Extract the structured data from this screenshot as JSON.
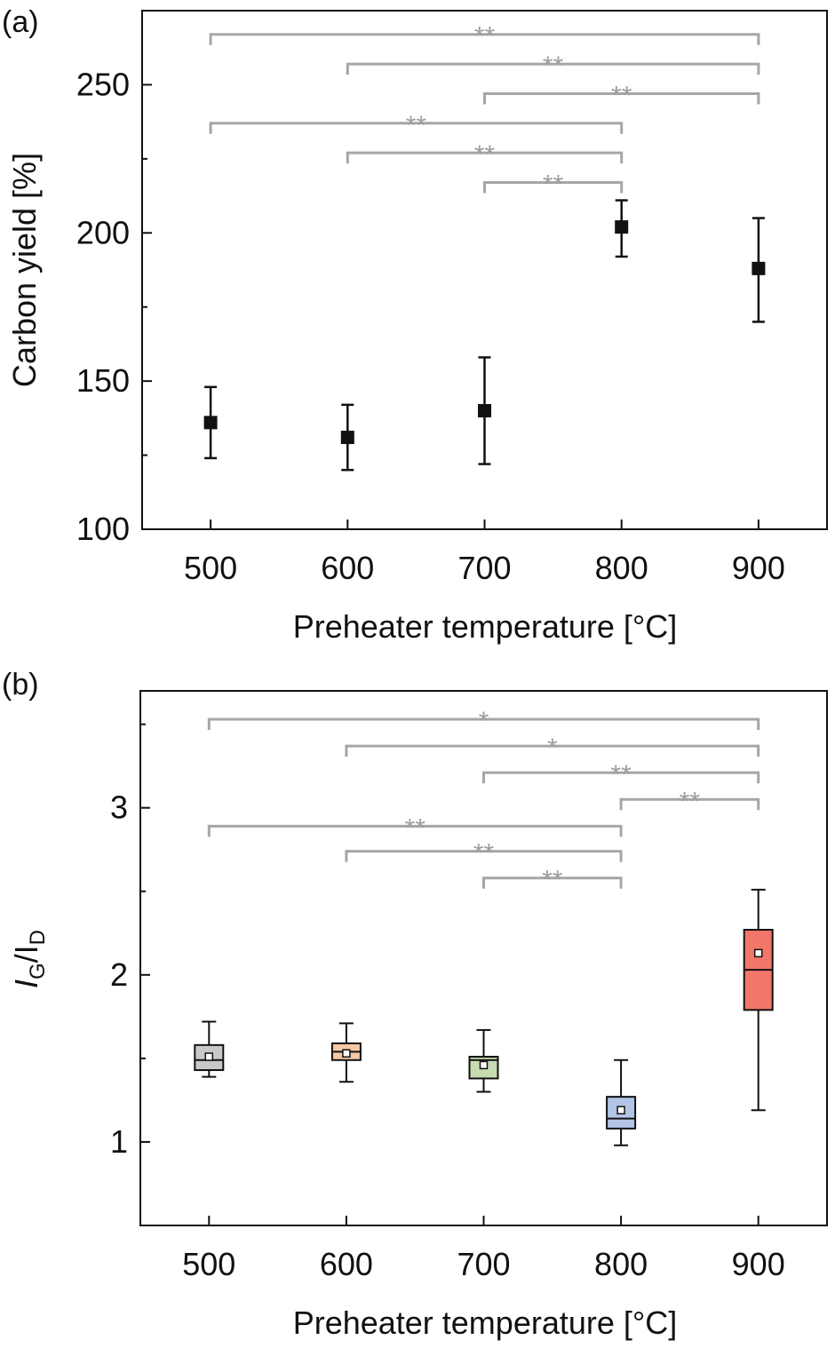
{
  "colors": {
    "marker": "#111111",
    "significance": "#a6a6a6",
    "box_500": "#c9c9c9",
    "box_600": "#f7c8a4",
    "box_700": "#c6ddb1",
    "box_800": "#b2c5e6",
    "box_900": "#f2776a"
  },
  "chart_data": [
    {
      "type": "scatter",
      "panel_label": "(a)",
      "xlabel": "Preheater temperature [°C]",
      "ylabel": "Carbon yield [%]",
      "categories": [
        500,
        600,
        700,
        800,
        900
      ],
      "xlim": [
        450,
        950
      ],
      "ylim": [
        100,
        275
      ],
      "yticks": [
        100,
        150,
        200,
        250
      ],
      "y_minor_step": 25,
      "grid": false,
      "series": [
        {
          "values": [
            136,
            131,
            140,
            202,
            188
          ],
          "error_low": [
            124,
            120,
            122,
            192,
            170
          ],
          "error_high": [
            148,
            142,
            158,
            211,
            205
          ]
        }
      ],
      "significance": [
        {
          "from": 500,
          "to": 900,
          "label": "**",
          "y": 267
        },
        {
          "from": 600,
          "to": 900,
          "label": "**",
          "y": 257
        },
        {
          "from": 700,
          "to": 900,
          "label": "**",
          "y": 247
        },
        {
          "from": 500,
          "to": 800,
          "label": "**",
          "y": 237
        },
        {
          "from": 600,
          "to": 800,
          "label": "**",
          "y": 227
        },
        {
          "from": 700,
          "to": 800,
          "label": "**",
          "y": 217
        }
      ]
    },
    {
      "type": "box",
      "panel_label": "(b)",
      "xlabel": "Preheater temperature [°C]",
      "ylabel_main": "I",
      "ylabel_sub1": "G",
      "ylabel_sep": "/I",
      "ylabel_sub2": "D",
      "categories": [
        500,
        600,
        700,
        800,
        900
      ],
      "xlim": [
        450,
        950
      ],
      "ylim": [
        0.5,
        3.7
      ],
      "yticks": [
        1,
        2,
        3
      ],
      "y_minor_step": 0.5,
      "grid": false,
      "boxes": [
        {
          "x": 500,
          "whisker_low": 1.39,
          "q1": 1.43,
          "median": 1.49,
          "q3": 1.58,
          "whisker_high": 1.72,
          "mean": 1.51
        },
        {
          "x": 600,
          "whisker_low": 1.36,
          "q1": 1.49,
          "median": 1.54,
          "q3": 1.59,
          "whisker_high": 1.71,
          "mean": 1.53
        },
        {
          "x": 700,
          "whisker_low": 1.3,
          "q1": 1.38,
          "median": 1.49,
          "q3": 1.51,
          "whisker_high": 1.67,
          "mean": 1.46
        },
        {
          "x": 800,
          "whisker_low": 0.98,
          "q1": 1.08,
          "median": 1.14,
          "q3": 1.27,
          "whisker_high": 1.49,
          "mean": 1.19
        },
        {
          "x": 900,
          "whisker_low": 1.19,
          "q1": 1.79,
          "median": 2.03,
          "q3": 2.27,
          "whisker_high": 2.51,
          "mean": 2.13
        }
      ],
      "significance": [
        {
          "from": 500,
          "to": 900,
          "label": "*",
          "y": 3.53
        },
        {
          "from": 600,
          "to": 900,
          "label": "*",
          "y": 3.37
        },
        {
          "from": 700,
          "to": 900,
          "label": "**",
          "y": 3.21
        },
        {
          "from": 800,
          "to": 900,
          "label": "**",
          "y": 3.05
        },
        {
          "from": 500,
          "to": 800,
          "label": "**",
          "y": 2.89
        },
        {
          "from": 600,
          "to": 800,
          "label": "**",
          "y": 2.74
        },
        {
          "from": 700,
          "to": 800,
          "label": "**",
          "y": 2.58
        }
      ]
    }
  ]
}
